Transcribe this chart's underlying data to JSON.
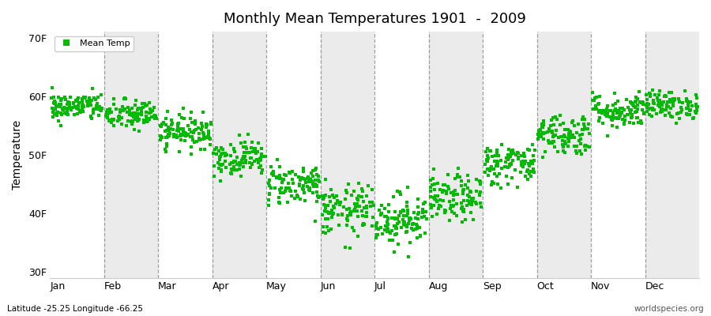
{
  "title": "Monthly Mean Temperatures 1901  -  2009",
  "ylabel": "Temperature",
  "subtitle_left": "Latitude -25.25 Longitude -66.25",
  "subtitle_right": "worldspecies.org",
  "legend_label": "Mean Temp",
  "dot_color": "#00bb00",
  "band_colors": [
    "#ffffff",
    "#ebebeb"
  ],
  "yticks": [
    30,
    40,
    50,
    60,
    70
  ],
  "ylim": [
    29,
    71
  ],
  "months": [
    "Jan",
    "Feb",
    "Mar",
    "Apr",
    "May",
    "Jun",
    "Jul",
    "Aug",
    "Sep",
    "Oct",
    "Nov",
    "Dec"
  ],
  "monthly_mean": [
    58.2,
    56.8,
    54.0,
    49.5,
    45.0,
    40.5,
    39.0,
    42.5,
    48.5,
    53.5,
    57.5,
    58.5
  ],
  "monthly_std": [
    1.2,
    1.3,
    1.4,
    1.5,
    1.8,
    2.2,
    2.2,
    2.0,
    1.8,
    1.8,
    1.5,
    1.2
  ],
  "n_years": 109,
  "seed": 42,
  "dot_size": 8,
  "dpi": 100,
  "figsize": [
    9.0,
    4.0
  ]
}
